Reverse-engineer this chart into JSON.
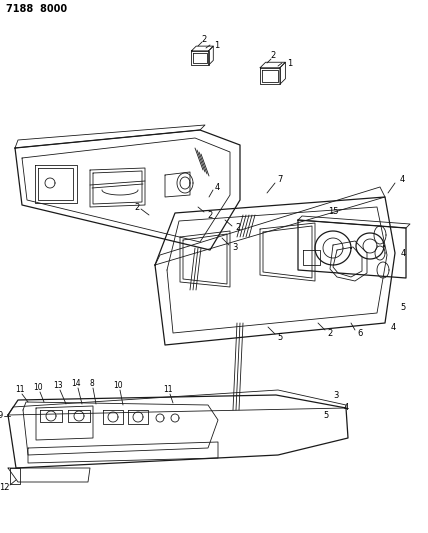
{
  "title_code": "7188 8000",
  "bg_color": "#ffffff",
  "line_color": "#1a1a1a",
  "label_color": "#000000",
  "fig_width": 4.28,
  "fig_height": 5.33,
  "dpi": 100
}
